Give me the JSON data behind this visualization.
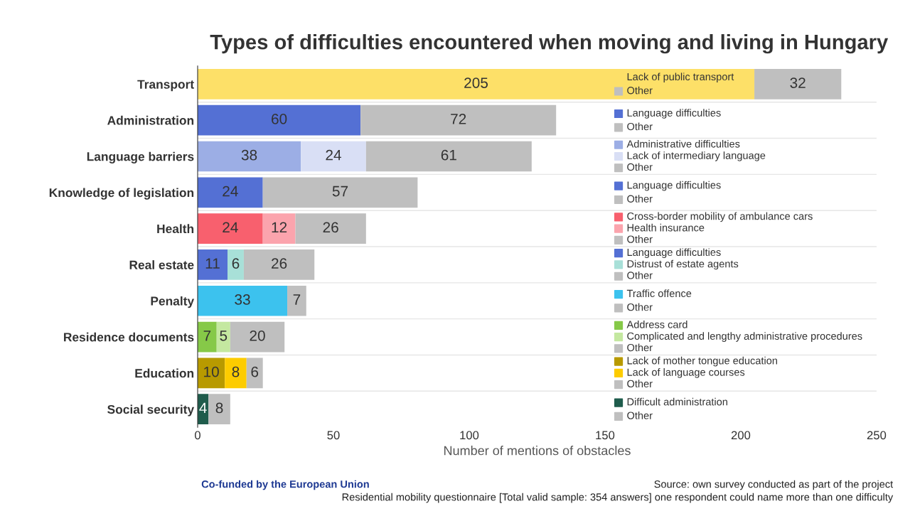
{
  "chart_data": {
    "type": "bar",
    "orientation": "horizontal",
    "stacked": true,
    "title": "Types of difficulties encountered when moving and living in Hungary",
    "xlabel": "Number of mentions of obstacles",
    "categories": [
      "Transport",
      "Administration",
      "Language barriers",
      "Knowledge of legislation",
      "Health",
      "Real estate",
      "Penalty",
      "Residence documents",
      "Education",
      "Social security"
    ],
    "series": [
      {
        "name": "Lack of public transport",
        "color": "#fde068",
        "values": [
          205,
          null,
          null,
          null,
          null,
          null,
          null,
          null,
          null,
          null
        ]
      },
      {
        "name": "Other",
        "color": "#bfbfbf",
        "values": [
          32,
          null,
          null,
          null,
          null,
          null,
          null,
          null,
          null,
          null
        ]
      },
      {
        "name": "Language difficulties",
        "color": "#5470d4",
        "values": [
          null,
          60,
          null,
          null,
          null,
          null,
          null,
          null,
          null,
          null
        ]
      },
      {
        "name": "Other",
        "color": "#bfbfbf",
        "values": [
          null,
          72,
          null,
          null,
          null,
          null,
          null,
          null,
          null,
          null
        ]
      },
      {
        "name": "Administrative difficulties",
        "color": "#9caee5",
        "values": [
          null,
          null,
          38,
          null,
          null,
          null,
          null,
          null,
          null,
          null
        ]
      },
      {
        "name": "Lack of intermediary language",
        "color": "#d9dff5",
        "values": [
          null,
          null,
          24,
          null,
          null,
          null,
          null,
          null,
          null,
          null
        ]
      },
      {
        "name": "Other",
        "color": "#bfbfbf",
        "values": [
          null,
          null,
          61,
          null,
          null,
          null,
          null,
          null,
          null,
          null
        ]
      },
      {
        "name": "Language difficulties",
        "color": "#5470d4",
        "values": [
          null,
          null,
          null,
          24,
          null,
          null,
          null,
          null,
          null,
          null
        ]
      },
      {
        "name": "Other",
        "color": "#bfbfbf",
        "values": [
          null,
          null,
          null,
          57,
          null,
          null,
          null,
          null,
          null,
          null
        ]
      },
      {
        "name": "Cross-border mobility of ambulance cars",
        "color": "#f8606e",
        "values": [
          null,
          null,
          null,
          null,
          24,
          null,
          null,
          null,
          null,
          null
        ]
      },
      {
        "name": "Health insurance",
        "color": "#fba4ad",
        "values": [
          null,
          null,
          null,
          null,
          12,
          null,
          null,
          null,
          null,
          null
        ]
      },
      {
        "name": "Other",
        "color": "#bfbfbf",
        "values": [
          null,
          null,
          null,
          null,
          26,
          null,
          null,
          null,
          null,
          null
        ]
      },
      {
        "name": "Language difficulties",
        "color": "#5470d4",
        "values": [
          null,
          null,
          null,
          null,
          null,
          11,
          null,
          null,
          null,
          null
        ]
      },
      {
        "name": "Distrust of estate agents",
        "color": "#a8e0d8",
        "values": [
          null,
          null,
          null,
          null,
          null,
          6,
          null,
          null,
          null,
          null
        ]
      },
      {
        "name": "Other",
        "color": "#bfbfbf",
        "values": [
          null,
          null,
          null,
          null,
          null,
          26,
          null,
          null,
          null,
          null
        ]
      },
      {
        "name": "Traffic offence",
        "color": "#3cc2ee",
        "values": [
          null,
          null,
          null,
          null,
          null,
          null,
          33,
          null,
          null,
          null
        ]
      },
      {
        "name": "Other",
        "color": "#bfbfbf",
        "values": [
          null,
          null,
          null,
          null,
          null,
          null,
          7,
          null,
          null,
          null
        ]
      },
      {
        "name": "Address card",
        "color": "#86c948",
        "values": [
          null,
          null,
          null,
          null,
          null,
          null,
          null,
          7,
          null,
          null
        ]
      },
      {
        "name": "Complicated and lengthy administrative procedures",
        "color": "#c4e8a0",
        "values": [
          null,
          null,
          null,
          null,
          null,
          null,
          null,
          5,
          null,
          null
        ]
      },
      {
        "name": "Other",
        "color": "#bfbfbf",
        "values": [
          null,
          null,
          null,
          null,
          null,
          null,
          null,
          20,
          null,
          null
        ]
      },
      {
        "name": "Lack of mother tongue education",
        "color": "#b89a00",
        "values": [
          null,
          null,
          null,
          null,
          null,
          null,
          null,
          null,
          10,
          null
        ]
      },
      {
        "name": "Lack of language courses",
        "color": "#fdcc00",
        "values": [
          null,
          null,
          null,
          null,
          null,
          null,
          null,
          null,
          8,
          null
        ]
      },
      {
        "name": "Other",
        "color": "#bfbfbf",
        "values": [
          null,
          null,
          null,
          null,
          null,
          null,
          null,
          null,
          6,
          null
        ]
      },
      {
        "name": "Difficult administration",
        "color": "#1f5c4c",
        "values": [
          null,
          null,
          null,
          null,
          null,
          null,
          null,
          null,
          null,
          4
        ]
      },
      {
        "name": "Other",
        "color": "#bfbfbf",
        "values": [
          null,
          null,
          null,
          null,
          null,
          null,
          null,
          null,
          null,
          8
        ]
      }
    ],
    "xlim": [
      0,
      250
    ],
    "xticks": [
      0,
      50,
      100,
      150,
      200,
      250
    ],
    "data_labels": true,
    "grid": "y",
    "legend": "right",
    "annotations": [
      "Co-funded by the European Union",
      "Source: own survey conducted as part of the project",
      "Residential mobility questionnaire [Total valid sample: 354 answers] one respondent could name more than one difficulty"
    ]
  }
}
